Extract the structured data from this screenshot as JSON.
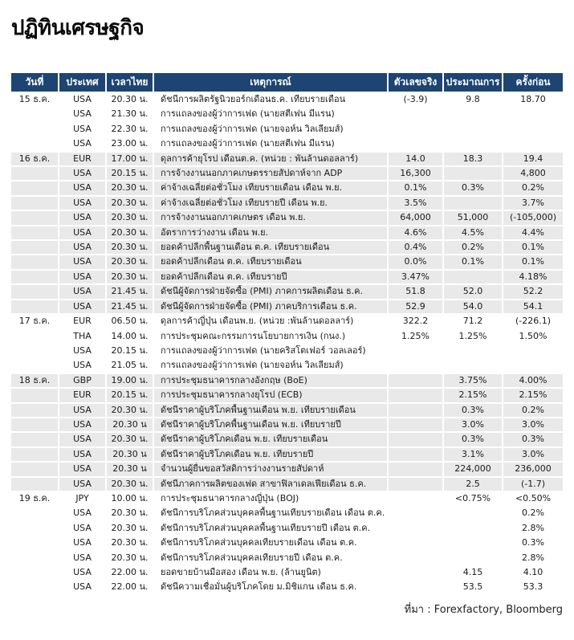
{
  "page": {
    "title": "ปฏิทินเศรษฐกิจ",
    "source_note": "ที่มา : Forexfactory, Bloomberg"
  },
  "colors": {
    "header_bg": "#1d4472",
    "stripe": "#e9e9e9"
  },
  "table": {
    "columns": [
      "วันที่",
      "ประเทศ",
      "เวลาไทย",
      "เหตุการณ์",
      "ตัวเลขจริง",
      "ประมาณการ",
      "ครั้งก่อน"
    ],
    "rows": [
      {
        "date": "15 ธ.ค.",
        "country": "USA",
        "time": "20.30 น.",
        "event": "ดัชนีการผลิตรัฐนิวยอร์กเดือนธ.ค. เทียบรายเดือน",
        "actual": "(-3.9)",
        "forecast": "9.8",
        "previous": "18.70"
      },
      {
        "date": "",
        "country": "USA",
        "time": "21.30 น.",
        "event": "การแถลงของผู้ว่าการเฟด (นายสตีเฟน มีแรน)",
        "actual": "",
        "forecast": "",
        "previous": ""
      },
      {
        "date": "",
        "country": "USA",
        "time": "22.30 น.",
        "event": "การแถลงของผู้ว่าการเฟด (นายจอห์น วิลเลียมส์)",
        "actual": "",
        "forecast": "",
        "previous": ""
      },
      {
        "date": "",
        "country": "USA",
        "time": "23.00 น.",
        "event": "การแถลงของผู้ว่าการเฟด (นายสตีเฟน มีแรน)",
        "actual": "",
        "forecast": "",
        "previous": ""
      },
      {
        "date": "16 ธ.ค.",
        "country": "EUR",
        "time": "17.00 น.",
        "event": "ดุลการค้ายุโรป เดือนต.ค. (หน่วย : พันล้านดอลลาร์)",
        "actual": "14.0",
        "forecast": "18.3",
        "previous": "19.4"
      },
      {
        "date": "",
        "country": "USA",
        "time": "20.15 น.",
        "event": "การจ้างงานนอกภาคเกษตรรายสัปดาห์จาก ADP",
        "actual": "16,300",
        "forecast": "",
        "previous": "4,800"
      },
      {
        "date": "",
        "country": "USA",
        "time": "20.30 น.",
        "event": "ค่าจ้างเฉลี่ยต่อชั่วโมง เทียบรายเดือน เดือน พ.ย.",
        "actual": "0.1%",
        "forecast": "0.3%",
        "previous": "0.2%"
      },
      {
        "date": "",
        "country": "USA",
        "time": "20.30 น.",
        "event": "ค่าจ้างเฉลี่ยต่อชั่วโมง เทียบรายปี เดือน พ.ย.",
        "actual": "3.5%",
        "forecast": "",
        "previous": "3.7%"
      },
      {
        "date": "",
        "country": "USA",
        "time": "20.30 น.",
        "event": "การจ้างงานนอกภาคเกษตร เดือน พ.ย.",
        "actual": "64,000",
        "forecast": "51,000",
        "previous": "(-105,000)"
      },
      {
        "date": "",
        "country": "USA",
        "time": "20.30 น.",
        "event": "อัตราการว่างงาน เดือน พ.ย.",
        "actual": "4.6%",
        "forecast": "4.5%",
        "previous": "4.4%"
      },
      {
        "date": "",
        "country": "USA",
        "time": "20.30 น.",
        "event": "ยอดค้าปลีกพื้นฐานเดือน ต.ค. เทียบรายเดือน",
        "actual": "0.4%",
        "forecast": "0.2%",
        "previous": "0.1%"
      },
      {
        "date": "",
        "country": "USA",
        "time": "20.30 น.",
        "event": "ยอดค้าปลีกเดือน ต.ค. เทียบรายเดือน",
        "actual": "0.0%",
        "forecast": "0.1%",
        "previous": "0.1%"
      },
      {
        "date": "",
        "country": "USA",
        "time": "20.30 น.",
        "event": "ยอดค้าปลีกเดือน ต.ค. เทียบรายปี",
        "actual": "3.47%",
        "forecast": "",
        "previous": "4.18%"
      },
      {
        "date": "",
        "country": "USA",
        "time": "21.45 น.",
        "event": "ดัชนีผู้จัดการฝ่ายจัดซื้อ (PMI) ภาคการผลิตเดือน ธ.ค.",
        "actual": "51.8",
        "forecast": "52.0",
        "previous": "52.2"
      },
      {
        "date": "",
        "country": "USA",
        "time": "21.45 น.",
        "event": "ดัชนีผู้จัดการฝ่ายจัดซื้อ (PMI) ภาคบริการเดือน ธ.ค.",
        "actual": "52.9",
        "forecast": "54.0",
        "previous": "54.1"
      },
      {
        "date": "17 ธ.ค.",
        "country": "EUR",
        "time": "06.50 น.",
        "event": "ดุลการค้าญี่ปุ่น เดือนพ.ย. (หน่วย :พันล้านดอลลาร์)",
        "actual": "322.2",
        "forecast": "71.2",
        "previous": "(-226.1)"
      },
      {
        "date": "",
        "country": "THA",
        "time": "14.00 น.",
        "event": "การประชุมคณะกรรมการนโยบายการเงิน (กนง.)",
        "actual": "1.25%",
        "forecast": "1.25%",
        "previous": "1.50%"
      },
      {
        "date": "",
        "country": "USA",
        "time": "20.15 น.",
        "event": "การแถลงของผู้ว่าการเฟด (นายคริสโตเฟอร์ วอลเลอร์)",
        "actual": "",
        "forecast": "",
        "previous": ""
      },
      {
        "date": "",
        "country": "USA",
        "time": "21.05 น.",
        "event": "การแถลงของผู้ว่าการเฟด (นายจอห์น วิลเลียมส์)",
        "actual": "",
        "forecast": "",
        "previous": ""
      },
      {
        "date": "18 ธ.ค.",
        "country": "GBP",
        "time": "19.00 น.",
        "event": "การประชุมธนาคารกลางอังกฤษ (BoE)",
        "actual": "",
        "forecast": "3.75%",
        "previous": "4.00%"
      },
      {
        "date": "",
        "country": "EUR",
        "time": "20.15 น.",
        "event": "การประชุมธนาคารกลางยุโรป (ECB)",
        "actual": "",
        "forecast": "2.15%",
        "previous": "2.15%"
      },
      {
        "date": "",
        "country": "USA",
        "time": "20.30 น.",
        "event": "ดัชนีราคาผู้บริโภคพื้นฐานเดือน พ.ย. เทียบรายเดือน",
        "actual": "",
        "forecast": "0.3%",
        "previous": "0.2%"
      },
      {
        "date": "",
        "country": "USA",
        "time": "20.30 น",
        "event": "ดัชนีราคาผู้บริโภคพื้นฐานเดือน พ.ย. เทียบรายปี",
        "actual": "",
        "forecast": "3.0%",
        "previous": "3.0%"
      },
      {
        "date": "",
        "country": "USA",
        "time": "20.30 น.",
        "event": "ดัชนีราคาผู้บริโภคเดือน พ.ย. เทียบรายเดือน",
        "actual": "",
        "forecast": "0.3%",
        "previous": "0.3%"
      },
      {
        "date": "",
        "country": "USA",
        "time": "20.30 น",
        "event": "ดัชนีราคาผู้บริโภคเดือน พ.ย. เทียบรายปี",
        "actual": "",
        "forecast": "3.1%",
        "previous": "3.0%"
      },
      {
        "date": "",
        "country": "USA",
        "time": "20.30 น",
        "event": "จำนวนผู้ยื่นขอสวัสดิการว่างงานรายสัปดาห์",
        "actual": "",
        "forecast": "224,000",
        "previous": "236,000"
      },
      {
        "date": "",
        "country": "USA",
        "time": "20.30 น.",
        "event": "ดัชนีภาคการผลิตของเฟด สาขาฟิลาเดลเฟียเดือน ธ.ค.",
        "actual": "",
        "forecast": "2.5",
        "previous": "(-1.7)"
      },
      {
        "date": "19 ธ.ค.",
        "country": "JPY",
        "time": "10.00 น.",
        "event": "การประชุมธนาคารกลางญี่ปุ่น (BOJ)",
        "actual": "",
        "forecast": "<0.75%",
        "previous": "<0.50%"
      },
      {
        "date": "",
        "country": "USA",
        "time": "20.30 น.",
        "event": "ดัชนีการบริโภคส่วนบุคคลพื้นฐานเทียบรายเดือน เดือน ต.ค.",
        "actual": "",
        "forecast": "",
        "previous": "0.2%"
      },
      {
        "date": "",
        "country": "USA",
        "time": "20.30 น.",
        "event": "ดัชนีการบริโภคส่วนบุคคลพื้นฐานเทียบรายปี เดือน ต.ค.",
        "actual": "",
        "forecast": "",
        "previous": "2.8%"
      },
      {
        "date": "",
        "country": "USA",
        "time": "20.30 น.",
        "event": "ดัชนีการบริโภคส่วนบุคคลเทียบรายเดือน เดือน ต.ค.",
        "actual": "",
        "forecast": "",
        "previous": "0.3%"
      },
      {
        "date": "",
        "country": "USA",
        "time": "20.30 น.",
        "event": "ดัชนีการบริโภคส่วนบุคคลเทียบรายปี เดือน ต.ค.",
        "actual": "",
        "forecast": "",
        "previous": "2.8%"
      },
      {
        "date": "",
        "country": "USA",
        "time": "22.00 น.",
        "event": "ยอดขายบ้านมือสอง เดือน พ.ย. (ล้านยูนิต)",
        "actual": "",
        "forecast": "4.15",
        "previous": "4.10"
      },
      {
        "date": "",
        "country": "USA",
        "time": "22.00 น.",
        "event": "ดัชนีความเชื่อมั่นผู้บริโภคโดย ม.มิชิแกน เดือน ธ.ค.",
        "actual": "",
        "forecast": "53.5",
        "previous": "53.3"
      }
    ]
  }
}
